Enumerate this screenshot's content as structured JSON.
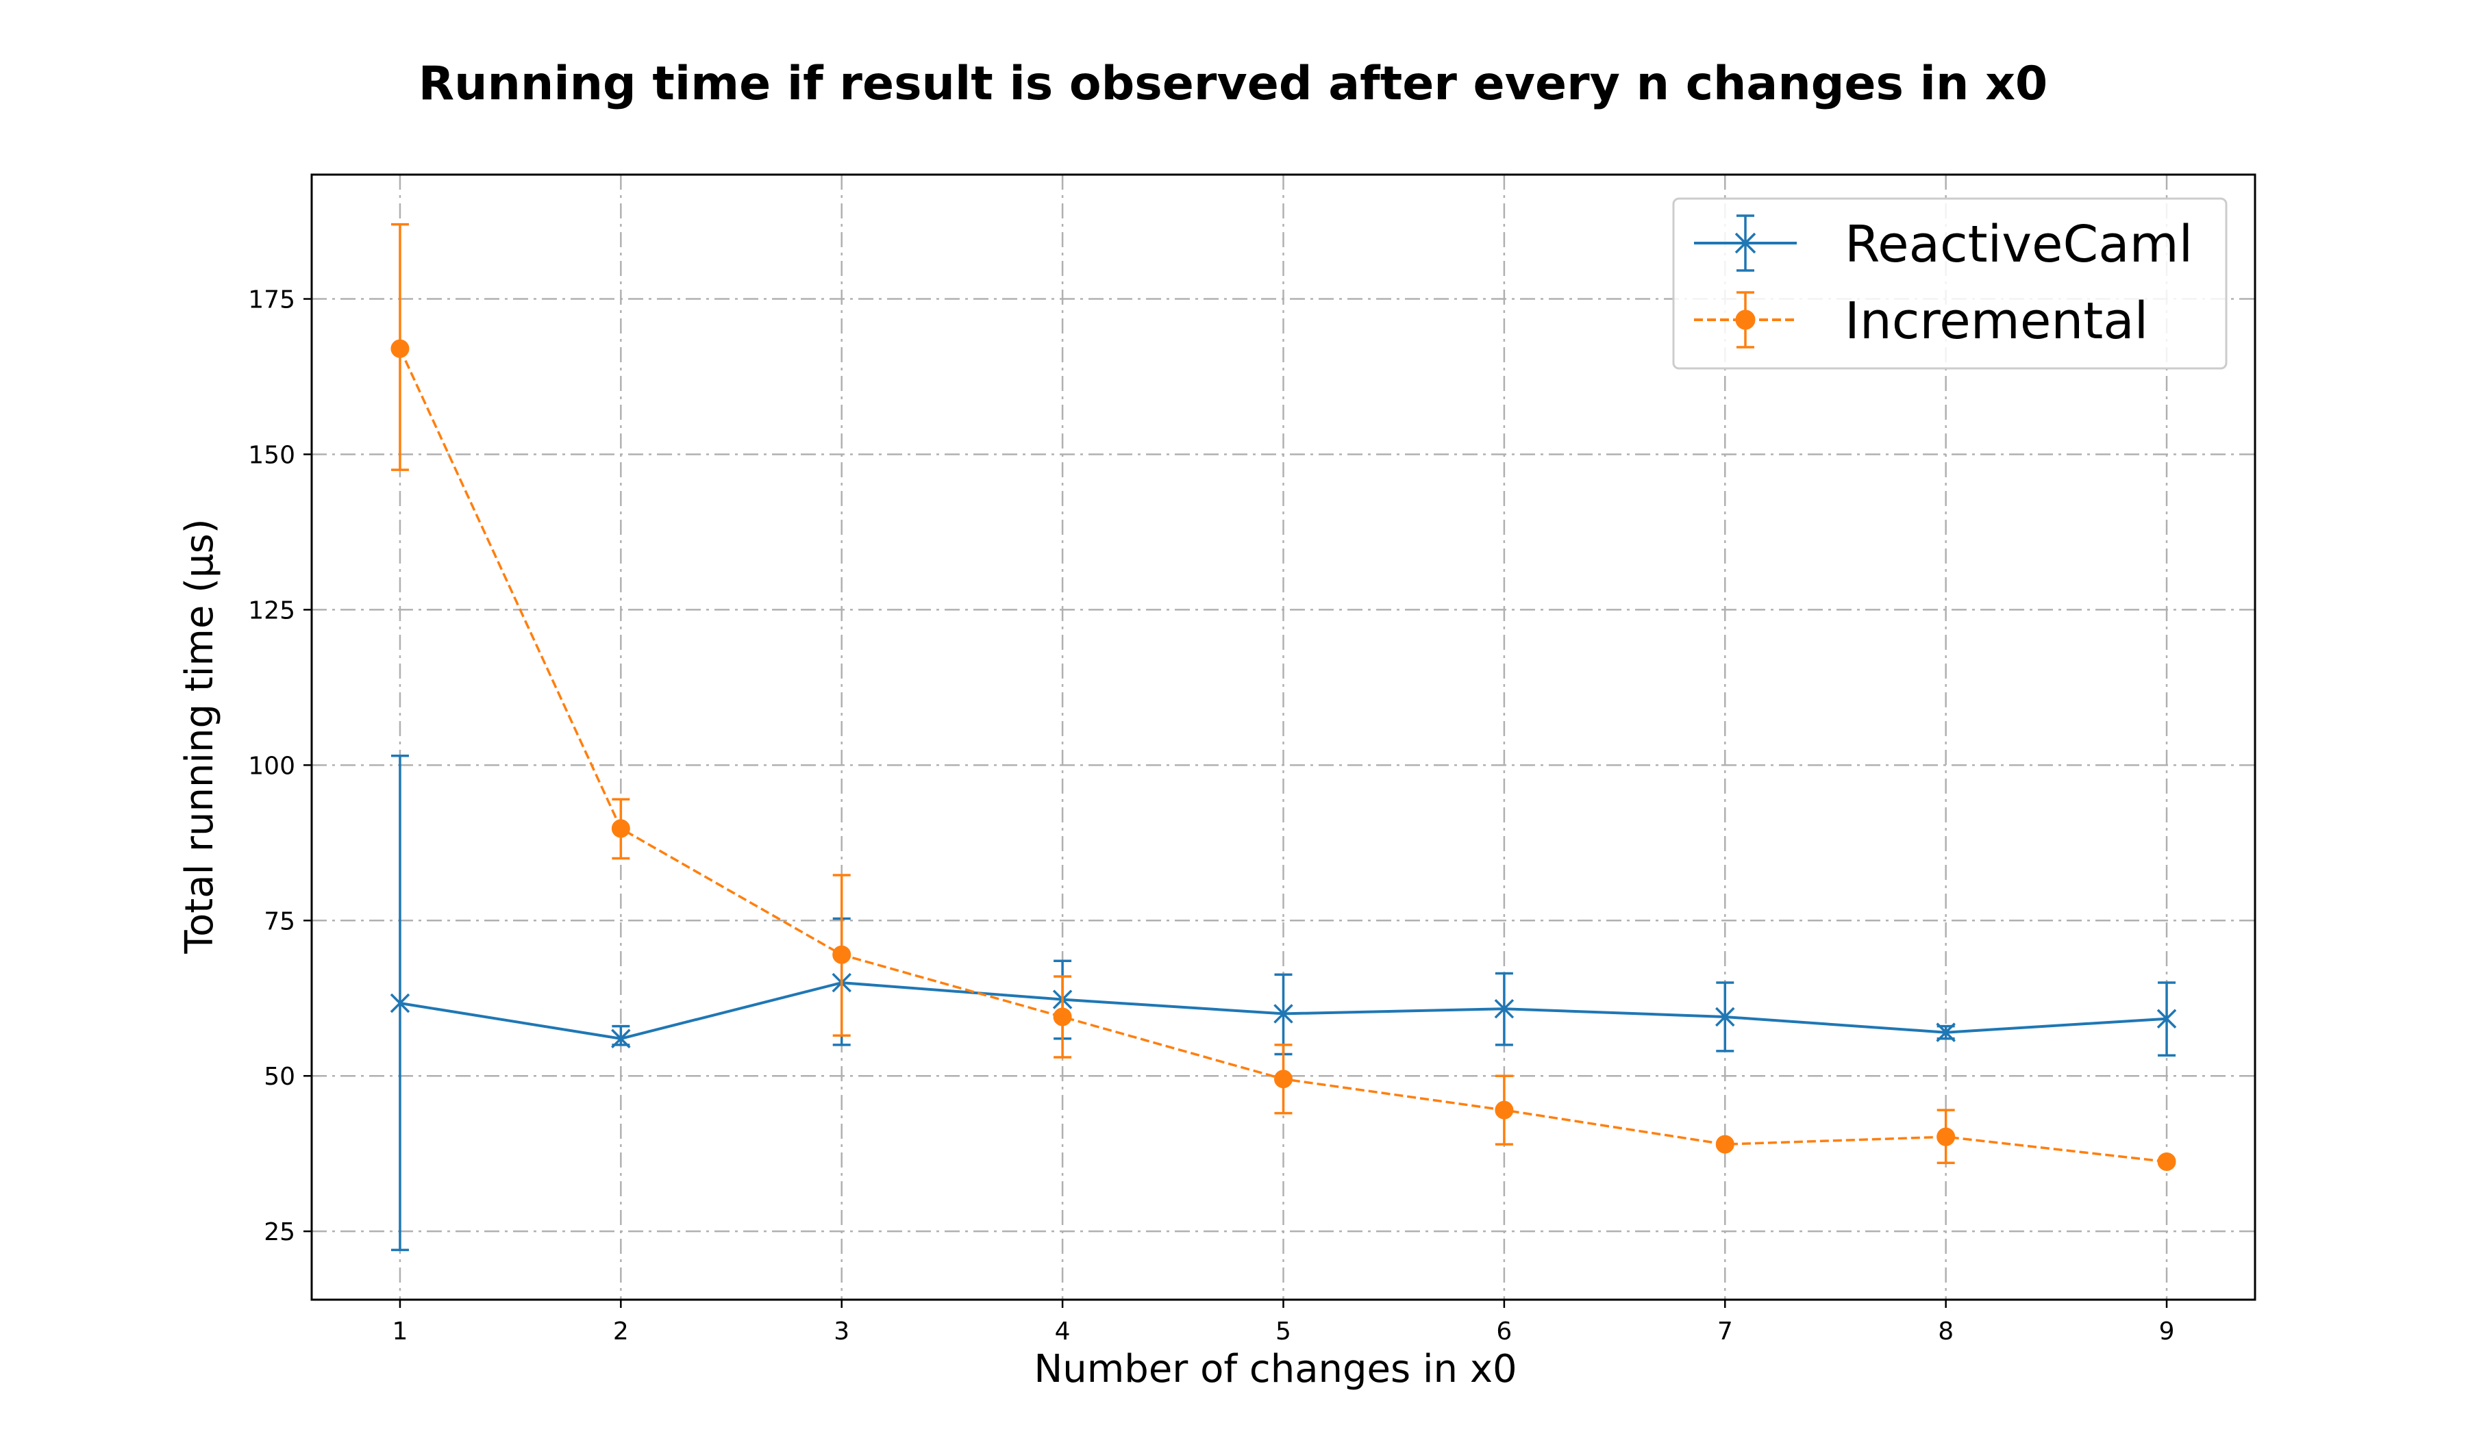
{
  "colors": {
    "reactivecaml": "#1f77b4",
    "incremental": "#ff7f0e",
    "grid": "#b0b0b0",
    "axes": "#000000"
  },
  "chart_data": {
    "type": "line",
    "title": "Running time if result is observed after every n changes in x0",
    "xlabel": "Number of changes in x0",
    "ylabel": "Total running time (μs)",
    "x": [
      1,
      2,
      3,
      4,
      5,
      6,
      7,
      8,
      9
    ],
    "xlim": [
      0.6,
      9.4
    ],
    "ylim": [
      14,
      195
    ],
    "xticks": [
      1,
      2,
      3,
      4,
      5,
      6,
      7,
      8,
      9
    ],
    "yticks": [
      25,
      50,
      75,
      100,
      125,
      150,
      175
    ],
    "grid": true,
    "legend_position": "top-right",
    "series": [
      {
        "name": "ReactiveCaml",
        "values": [
          61.7,
          56.0,
          65.0,
          62.3,
          60.0,
          60.8,
          59.5,
          57.0,
          59.2
        ],
        "err_low": [
          22.0,
          55.0,
          55.0,
          56.0,
          53.5,
          55.0,
          54.0,
          56.0,
          53.3
        ],
        "err_high": [
          101.5,
          58.0,
          75.3,
          68.5,
          66.3,
          66.5,
          65.0,
          58.0,
          65.0
        ],
        "color": "#1f77b4",
        "linestyle": "solid",
        "marker": "x"
      },
      {
        "name": "Incremental",
        "values": [
          167.0,
          89.8,
          69.5,
          59.5,
          49.5,
          44.5,
          39.0,
          40.2,
          36.2
        ],
        "err_low": [
          147.5,
          85.0,
          56.5,
          53.0,
          44.0,
          39.0,
          39.0,
          36.0,
          36.0
        ],
        "err_high": [
          187.0,
          94.5,
          82.3,
          66.0,
          55.0,
          50.0,
          39.0,
          44.5,
          36.5
        ],
        "color": "#ff7f0e",
        "linestyle": "dashed",
        "marker": "o"
      }
    ]
  }
}
